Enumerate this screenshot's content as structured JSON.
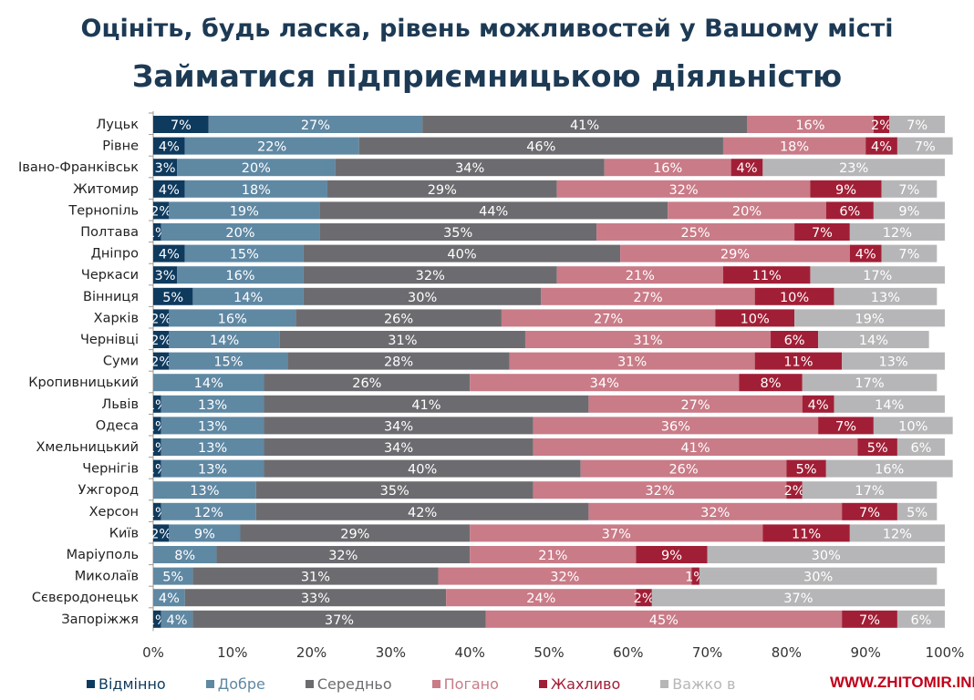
{
  "header": {
    "title": "Оцініть, будь ласка, рівень можливостей у Вашому місті",
    "subtitle": "Займатися підприємницькою діяльністю"
  },
  "watermark": "WWW.ZHITOMIR.INFO",
  "chart_data": {
    "type": "bar",
    "orientation": "horizontal-stacked",
    "title": "Займатися підприємницькою діяльністю",
    "xlim": [
      0,
      100
    ],
    "xticks": [
      "0%",
      "10%",
      "20%",
      "30%",
      "40%",
      "50%",
      "60%",
      "70%",
      "80%",
      "90%",
      "100%"
    ],
    "legend_position": "bottom",
    "categories": [
      "Луцьк",
      "Рівне",
      "Івано-Франківськ",
      "Житомир",
      "Тернопіль",
      "Полтава",
      "Дніпро",
      "Черкаси",
      "Вінниця",
      "Харків",
      "Чернівці",
      "Суми",
      "Кропивницький",
      "Львів",
      "Одеса",
      "Хмельницький",
      "Чернігів",
      "Ужгород",
      "Херсон",
      "Київ",
      "Маріуполь",
      "Миколаїв",
      "Сєвєродонецьк",
      "Запоріжжя"
    ],
    "series": [
      {
        "name": "Відмінно",
        "color": "#0e3a5e",
        "values": [
          7,
          4,
          3,
          4,
          2,
          1,
          4,
          3,
          5,
          2,
          2,
          2,
          0,
          1,
          1,
          1,
          1,
          0,
          1,
          2,
          0,
          0,
          0,
          1
        ]
      },
      {
        "name": "Добре",
        "color": "#5f88a3",
        "values": [
          27,
          22,
          20,
          18,
          19,
          20,
          15,
          16,
          14,
          16,
          14,
          15,
          14,
          13,
          13,
          13,
          13,
          13,
          12,
          9,
          8,
          5,
          4,
          4
        ]
      },
      {
        "name": "Середньо",
        "color": "#6c6c70",
        "values": [
          41,
          46,
          34,
          29,
          44,
          35,
          40,
          32,
          30,
          26,
          31,
          28,
          26,
          41,
          34,
          34,
          40,
          35,
          42,
          29,
          32,
          31,
          33,
          37
        ]
      },
      {
        "name": "Погано",
        "color": "#c97b87",
        "values": [
          16,
          18,
          16,
          32,
          20,
          25,
          29,
          21,
          27,
          27,
          31,
          31,
          34,
          27,
          36,
          41,
          26,
          32,
          32,
          37,
          21,
          32,
          24,
          45
        ]
      },
      {
        "name": "Жахливо",
        "color": "#a11f36",
        "values": [
          2,
          4,
          4,
          9,
          6,
          7,
          4,
          11,
          10,
          10,
          6,
          11,
          8,
          4,
          7,
          5,
          5,
          2,
          7,
          11,
          9,
          1,
          2,
          7
        ]
      },
      {
        "name": "Важко в",
        "color": "#b6b6b8",
        "values": [
          7,
          7,
          23,
          7,
          9,
          12,
          7,
          17,
          13,
          19,
          14,
          13,
          17,
          14,
          10,
          6,
          16,
          17,
          5,
          12,
          30,
          30,
          37,
          6
        ]
      }
    ]
  }
}
